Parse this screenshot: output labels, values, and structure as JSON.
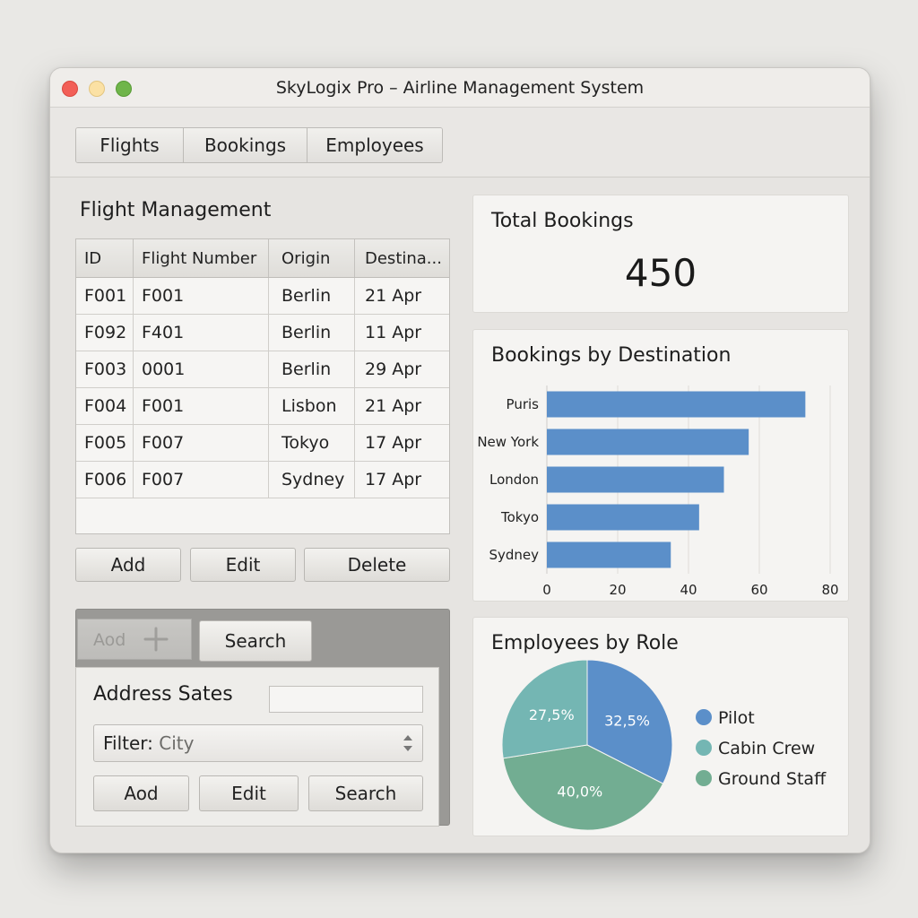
{
  "window": {
    "title": "SkyLogix Pro – Airline Management System"
  },
  "tabs": [
    "Flights",
    "Bookings",
    "Employees"
  ],
  "flight_management": {
    "title": "Flight Management",
    "columns": [
      "ID",
      "Flight Number",
      "Origin",
      "Destina..."
    ],
    "rows": [
      [
        "F001",
        "F001",
        "Berlin",
        "21 Apr"
      ],
      [
        "F092",
        "F401",
        "Berlin",
        "11 Apr"
      ],
      [
        "F003",
        "0001",
        "Berlin",
        "29 Apr"
      ],
      [
        "F004",
        "F001",
        "Lisbon",
        "21 Apr"
      ],
      [
        "F005",
        "F007",
        "Tokyo",
        "17 Apr"
      ],
      [
        "F006",
        "F007",
        "Sydney",
        "17 Apr"
      ]
    ],
    "buttons": {
      "add": "Add",
      "edit": "Edit",
      "delete": "Delete"
    }
  },
  "lower_panel": {
    "ghost_button": "Aod",
    "search_tab": "Search",
    "title": "Address Sates",
    "input_value": "",
    "filter_label": "Filter:",
    "filter_value": "City",
    "buttons": {
      "add": "Aod",
      "edit": "Edit",
      "search": "Search"
    }
  },
  "total_bookings": {
    "title": "Total Bookings",
    "value": "450"
  },
  "bookings_by_destination": {
    "title": "Bookings by Destination"
  },
  "employees_by_role": {
    "title": "Employees by Role"
  },
  "chart_data": [
    {
      "type": "bar",
      "orientation": "horizontal",
      "title": "Bookings by Destination",
      "categories": [
        "Puris",
        "New York",
        "London",
        "Tokyo",
        "Sydney"
      ],
      "values": [
        73,
        57,
        50,
        43,
        35
      ],
      "xlim": [
        0,
        80
      ],
      "xticks": [
        "0",
        "20",
        "40",
        "60",
        "80"
      ],
      "grid": true,
      "color": "#5b8fc9"
    },
    {
      "type": "pie",
      "title": "Employees by Role",
      "labels": [
        "Pilot",
        "Cabin Crew",
        "Ground Staff"
      ],
      "values": [
        32.5,
        27.5,
        40.0
      ],
      "value_labels": [
        "32,5%",
        "27,5%",
        "40,0%"
      ],
      "colors": [
        "#5b8fc9",
        "#74b6b3",
        "#72ad92"
      ],
      "legend": "right"
    }
  ]
}
